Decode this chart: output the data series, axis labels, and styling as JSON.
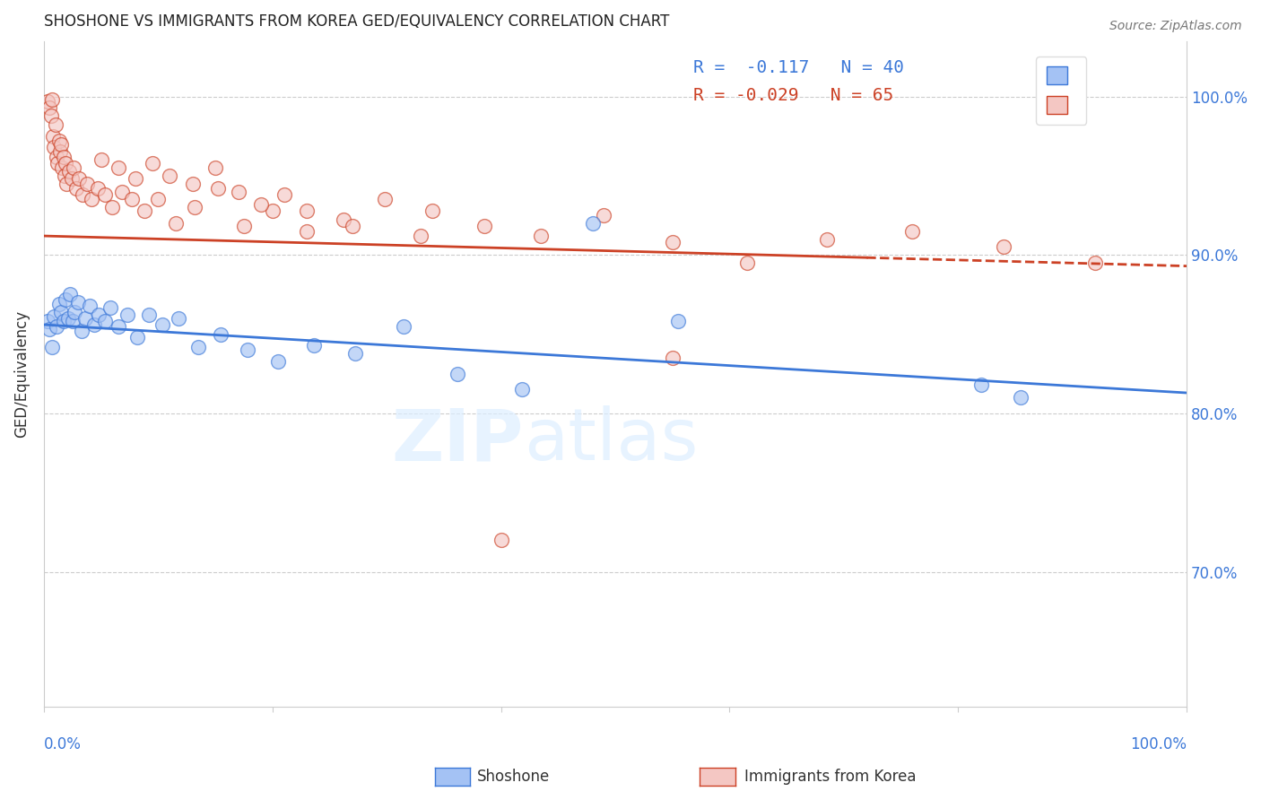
{
  "title": "SHOSHONE VS IMMIGRANTS FROM KOREA GED/EQUIVALENCY CORRELATION CHART",
  "source": "Source: ZipAtlas.com",
  "ylabel": "GED/Equivalency",
  "xlim": [
    0.0,
    1.0
  ],
  "ylim": [
    0.615,
    1.035
  ],
  "yticks": [
    0.7,
    0.8,
    0.9,
    1.0
  ],
  "ytick_labels": [
    "70.0%",
    "80.0%",
    "90.0%",
    "100.0%"
  ],
  "xticks": [
    0.0,
    0.2,
    0.4,
    0.6,
    0.8,
    1.0
  ],
  "blue_R": "-0.117",
  "blue_N": "40",
  "pink_R": "-0.029",
  "pink_N": "65",
  "blue_color": "#a4c2f4",
  "pink_color": "#f4c7c3",
  "blue_line_color": "#3c78d8",
  "pink_line_color": "#cc4125",
  "shoshone_points": [
    [
      0.003,
      0.858
    ],
    [
      0.005,
      0.853
    ],
    [
      0.007,
      0.842
    ],
    [
      0.009,
      0.861
    ],
    [
      0.011,
      0.855
    ],
    [
      0.013,
      0.869
    ],
    [
      0.015,
      0.864
    ],
    [
      0.017,
      0.858
    ],
    [
      0.019,
      0.872
    ],
    [
      0.021,
      0.86
    ],
    [
      0.023,
      0.875
    ],
    [
      0.025,
      0.858
    ],
    [
      0.027,
      0.864
    ],
    [
      0.03,
      0.87
    ],
    [
      0.033,
      0.852
    ],
    [
      0.036,
      0.86
    ],
    [
      0.04,
      0.868
    ],
    [
      0.044,
      0.856
    ],
    [
      0.048,
      0.862
    ],
    [
      0.053,
      0.858
    ],
    [
      0.058,
      0.867
    ],
    [
      0.065,
      0.855
    ],
    [
      0.073,
      0.862
    ],
    [
      0.082,
      0.848
    ],
    [
      0.092,
      0.862
    ],
    [
      0.104,
      0.856
    ],
    [
      0.118,
      0.86
    ],
    [
      0.135,
      0.842
    ],
    [
      0.155,
      0.85
    ],
    [
      0.178,
      0.84
    ],
    [
      0.205,
      0.833
    ],
    [
      0.236,
      0.843
    ],
    [
      0.272,
      0.838
    ],
    [
      0.315,
      0.855
    ],
    [
      0.362,
      0.825
    ],
    [
      0.418,
      0.815
    ],
    [
      0.48,
      0.92
    ],
    [
      0.555,
      0.858
    ],
    [
      0.82,
      0.818
    ],
    [
      0.855,
      0.81
    ]
  ],
  "korea_points": [
    [
      0.003,
      0.997
    ],
    [
      0.005,
      0.993
    ],
    [
      0.006,
      0.988
    ],
    [
      0.007,
      0.998
    ],
    [
      0.008,
      0.975
    ],
    [
      0.009,
      0.968
    ],
    [
      0.01,
      0.982
    ],
    [
      0.011,
      0.962
    ],
    [
      0.012,
      0.958
    ],
    [
      0.013,
      0.972
    ],
    [
      0.014,
      0.965
    ],
    [
      0.015,
      0.97
    ],
    [
      0.016,
      0.955
    ],
    [
      0.017,
      0.962
    ],
    [
      0.018,
      0.95
    ],
    [
      0.019,
      0.958
    ],
    [
      0.02,
      0.945
    ],
    [
      0.022,
      0.953
    ],
    [
      0.024,
      0.948
    ],
    [
      0.026,
      0.955
    ],
    [
      0.028,
      0.942
    ],
    [
      0.031,
      0.948
    ],
    [
      0.034,
      0.938
    ],
    [
      0.038,
      0.945
    ],
    [
      0.042,
      0.935
    ],
    [
      0.047,
      0.942
    ],
    [
      0.053,
      0.938
    ],
    [
      0.06,
      0.93
    ],
    [
      0.068,
      0.94
    ],
    [
      0.077,
      0.935
    ],
    [
      0.088,
      0.928
    ],
    [
      0.1,
      0.935
    ],
    [
      0.115,
      0.92
    ],
    [
      0.132,
      0.93
    ],
    [
      0.152,
      0.942
    ],
    [
      0.175,
      0.918
    ],
    [
      0.2,
      0.928
    ],
    [
      0.23,
      0.915
    ],
    [
      0.262,
      0.922
    ],
    [
      0.298,
      0.935
    ],
    [
      0.34,
      0.928
    ],
    [
      0.385,
      0.918
    ],
    [
      0.435,
      0.912
    ],
    [
      0.49,
      0.925
    ],
    [
      0.55,
      0.908
    ],
    [
      0.615,
      0.895
    ],
    [
      0.685,
      0.91
    ],
    [
      0.76,
      0.915
    ],
    [
      0.84,
      0.905
    ],
    [
      0.92,
      0.895
    ],
    [
      0.05,
      0.96
    ],
    [
      0.065,
      0.955
    ],
    [
      0.08,
      0.948
    ],
    [
      0.095,
      0.958
    ],
    [
      0.11,
      0.95
    ],
    [
      0.13,
      0.945
    ],
    [
      0.15,
      0.955
    ],
    [
      0.17,
      0.94
    ],
    [
      0.19,
      0.932
    ],
    [
      0.21,
      0.938
    ],
    [
      0.23,
      0.928
    ],
    [
      0.27,
      0.918
    ],
    [
      0.33,
      0.912
    ],
    [
      0.4,
      0.72
    ],
    [
      0.55,
      0.835
    ]
  ]
}
